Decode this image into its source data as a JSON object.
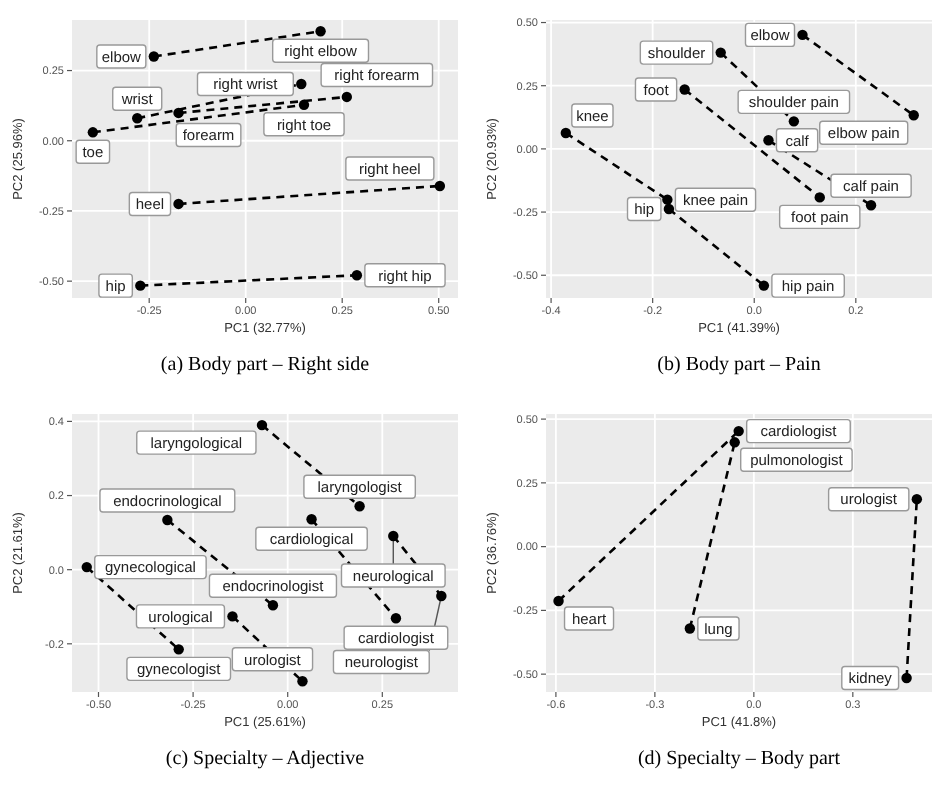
{
  "chart_data": [
    {
      "type": "line",
      "title": "(a) Body part – Right side",
      "xlabel": "PC1 (32.77%)",
      "ylabel": "PC2 (25.96%)",
      "xlim": [
        -0.45,
        0.55
      ],
      "ylim": [
        -0.56,
        0.43
      ],
      "xticks": [
        {
          "value": -0.25,
          "label": "-0.25"
        },
        {
          "value": 0,
          "label": "0.00"
        },
        {
          "value": 0.25,
          "label": "0.25"
        },
        {
          "value": 0.5,
          "label": "0.50"
        }
      ],
      "yticks": [
        {
          "value": -0.5,
          "label": "-0.50"
        },
        {
          "value": -0.25,
          "label": "-0.25"
        },
        {
          "value": 0,
          "label": "0.00"
        },
        {
          "value": 0.25,
          "label": "0.25"
        }
      ],
      "grid": true,
      "marker": "circle",
      "line_style": "dashed",
      "series": [
        {
          "color": "#000000",
          "x": [
            -0.238,
            0.194
          ],
          "values": [
            0.3,
            0.39
          ]
        },
        {
          "color": "#000000",
          "x": [
            -0.281,
            0.144
          ],
          "values": [
            0.08,
            0.202
          ]
        },
        {
          "color": "#000000",
          "x": [
            -0.174,
            0.262
          ],
          "values": [
            0.099,
            0.156
          ]
        },
        {
          "color": "#000000",
          "x": [
            -0.396,
            0.151
          ],
          "values": [
            0.03,
            0.128
          ]
        },
        {
          "color": "#000000",
          "x": [
            -0.174,
            0.503
          ],
          "values": [
            -0.225,
            -0.161
          ]
        },
        {
          "color": "#000000",
          "x": [
            -0.273,
            0.288
          ],
          "values": [
            -0.516,
            -0.479
          ]
        }
      ],
      "annotations": [
        {
          "text": "elbow",
          "x": -0.238,
          "y": 0.3
        },
        {
          "text": "right elbow",
          "x": 0.194,
          "y": 0.39
        },
        {
          "text": "wrist",
          "x": -0.281,
          "y": 0.08
        },
        {
          "text": "right wrist",
          "x": 0.144,
          "y": 0.202
        },
        {
          "text": "forearm",
          "x": -0.174,
          "y": 0.099
        },
        {
          "text": "right forearm",
          "x": 0.262,
          "y": 0.156
        },
        {
          "text": "toe",
          "x": -0.396,
          "y": 0.03
        },
        {
          "text": "right toe",
          "x": 0.151,
          "y": 0.128
        },
        {
          "text": "heel",
          "x": -0.174,
          "y": -0.225
        },
        {
          "text": "right heel",
          "x": 0.503,
          "y": -0.161
        },
        {
          "text": "hip",
          "x": -0.273,
          "y": -0.516
        },
        {
          "text": "right hip",
          "x": 0.288,
          "y": -0.479
        }
      ]
    },
    {
      "type": "line",
      "title": "(b) Body part – Pain",
      "xlabel": "PC1 (41.39%)",
      "ylabel": "PC2 (20.93%)",
      "xlim": [
        -0.41,
        0.35
      ],
      "ylim": [
        -0.59,
        0.51
      ],
      "xticks": [
        {
          "value": -0.4,
          "label": "-0.4"
        },
        {
          "value": -0.2,
          "label": "-0.2"
        },
        {
          "value": 0,
          "label": "0.0"
        },
        {
          "value": 0.2,
          "label": "0.2"
        }
      ],
      "yticks": [
        {
          "value": -0.5,
          "label": "-0.50"
        },
        {
          "value": -0.25,
          "label": "-0.25"
        },
        {
          "value": 0,
          "label": "0.00"
        },
        {
          "value": 0.25,
          "label": "0.25"
        },
        {
          "value": 0.5,
          "label": "0.50"
        }
      ],
      "grid": true,
      "marker": "circle",
      "line_style": "dashed",
      "series": [
        {
          "color": "#000000",
          "x": [
            0.095,
            0.314
          ],
          "values": [
            0.451,
            0.133
          ]
        },
        {
          "color": "#000000",
          "x": [
            -0.066,
            0.078
          ],
          "values": [
            0.381,
            0.109
          ]
        },
        {
          "color": "#000000",
          "x": [
            -0.137,
            0.129
          ],
          "values": [
            0.235,
            -0.192
          ]
        },
        {
          "color": "#000000",
          "x": [
            0.028,
            0.23
          ],
          "values": [
            0.034,
            -0.223
          ]
        },
        {
          "color": "#000000",
          "x": [
            -0.371,
            -0.171
          ],
          "values": [
            0.063,
            -0.201
          ]
        },
        {
          "color": "#000000",
          "x": [
            -0.168,
            0.019
          ],
          "values": [
            -0.238,
            -0.541
          ]
        }
      ],
      "annotations": [
        {
          "text": "elbow",
          "x": 0.095,
          "y": 0.451
        },
        {
          "text": "elbow pain",
          "x": 0.314,
          "y": 0.133
        },
        {
          "text": "shoulder",
          "x": -0.066,
          "y": 0.381
        },
        {
          "text": "shoulder pain",
          "x": 0.078,
          "y": 0.109
        },
        {
          "text": "foot",
          "x": -0.137,
          "y": 0.235
        },
        {
          "text": "foot pain",
          "x": 0.129,
          "y": -0.192
        },
        {
          "text": "calf",
          "x": 0.028,
          "y": 0.034
        },
        {
          "text": "calf pain",
          "x": 0.23,
          "y": -0.223
        },
        {
          "text": "knee",
          "x": -0.371,
          "y": 0.063
        },
        {
          "text": "knee pain",
          "x": -0.171,
          "y": -0.201
        },
        {
          "text": "hip",
          "x": -0.168,
          "y": -0.238
        },
        {
          "text": "hip pain",
          "x": 0.019,
          "y": -0.541
        }
      ]
    },
    {
      "type": "line",
      "title": "(c) Specialty – Adjective",
      "xlabel": "PC1 (25.61%)",
      "ylabel": "PC2 (21.61%)",
      "xlim": [
        -0.57,
        0.45
      ],
      "ylim": [
        -0.33,
        0.42
      ],
      "xticks": [
        {
          "value": -0.5,
          "label": "-0.50"
        },
        {
          "value": -0.25,
          "label": "-0.25"
        },
        {
          "value": 0,
          "label": "0.00"
        },
        {
          "value": 0.25,
          "label": "0.25"
        }
      ],
      "yticks": [
        {
          "value": -0.2,
          "label": "-0.2"
        },
        {
          "value": 0,
          "label": "0.0"
        },
        {
          "value": 0.2,
          "label": "0.2"
        },
        {
          "value": 0.4,
          "label": "0.4"
        }
      ],
      "grid": true,
      "marker": "circle",
      "line_style": "dashed",
      "series": [
        {
          "color": "#000000",
          "x": [
            -0.068,
            0.19
          ],
          "values": [
            0.39,
            0.171
          ]
        },
        {
          "color": "#000000",
          "x": [
            -0.318,
            -0.039
          ],
          "values": [
            0.134,
            -0.096
          ]
        },
        {
          "color": "#000000",
          "x": [
            0.063,
            0.286
          ],
          "values": [
            0.136,
            -0.131
          ]
        },
        {
          "color": "#000000",
          "x": [
            0.279,
            0.406
          ],
          "values": [
            0.091,
            -0.071
          ]
        },
        {
          "color": "#000000",
          "x": [
            -0.531,
            -0.288
          ],
          "values": [
            0.007,
            -0.215
          ]
        },
        {
          "color": "#000000",
          "x": [
            -0.146,
            0.039
          ],
          "values": [
            -0.126,
            -0.301
          ]
        }
      ],
      "annotations": [
        {
          "text": "laryngological",
          "x": -0.068,
          "y": 0.39
        },
        {
          "text": "laryngologist",
          "x": 0.19,
          "y": 0.171
        },
        {
          "text": "endocrinological",
          "x": -0.318,
          "y": 0.134
        },
        {
          "text": "endocrinologist",
          "x": -0.039,
          "y": -0.096
        },
        {
          "text": "cardiological",
          "x": 0.063,
          "y": 0.136
        },
        {
          "text": "cardiologist",
          "x": 0.286,
          "y": -0.131
        },
        {
          "text": "neurological",
          "x": 0.279,
          "y": 0.091
        },
        {
          "text": "neurologist",
          "x": 0.406,
          "y": -0.071
        },
        {
          "text": "gynecological",
          "x": -0.531,
          "y": 0.007
        },
        {
          "text": "gynecologist",
          "x": -0.288,
          "y": -0.215
        },
        {
          "text": "urological",
          "x": -0.146,
          "y": -0.126
        },
        {
          "text": "urologist",
          "x": 0.039,
          "y": -0.301
        }
      ]
    },
    {
      "type": "line",
      "title": "(d) Specialty – Body part",
      "xlabel": "PC1 (41.8%)",
      "ylabel": "PC2 (36.76%)",
      "xlim": [
        -0.63,
        0.54
      ],
      "ylim": [
        -0.57,
        0.52
      ],
      "xticks": [
        {
          "value": -0.6,
          "label": "-0.6"
        },
        {
          "value": -0.3,
          "label": "-0.3"
        },
        {
          "value": 0,
          "label": "0.0"
        },
        {
          "value": 0.3,
          "label": "0.3"
        }
      ],
      "yticks": [
        {
          "value": -0.5,
          "label": "-0.50"
        },
        {
          "value": -0.25,
          "label": "-0.25"
        },
        {
          "value": 0,
          "label": "0.00"
        },
        {
          "value": 0.25,
          "label": "0.25"
        },
        {
          "value": 0.5,
          "label": "0.50"
        }
      ],
      "grid": true,
      "marker": "circle",
      "line_style": "dashed",
      "series": [
        {
          "color": "#000000",
          "x": [
            -0.592,
            -0.046
          ],
          "values": [
            -0.213,
            0.453
          ]
        },
        {
          "color": "#000000",
          "x": [
            -0.194,
            -0.058
          ],
          "values": [
            -0.321,
            0.409
          ]
        },
        {
          "color": "#000000",
          "x": [
            0.463,
            0.494
          ],
          "values": [
            -0.515,
            0.186
          ]
        }
      ],
      "annotations": [
        {
          "text": "cardiologist",
          "x": -0.046,
          "y": 0.453
        },
        {
          "text": "pulmonologist",
          "x": -0.058,
          "y": 0.409
        },
        {
          "text": "heart",
          "x": -0.592,
          "y": -0.213
        },
        {
          "text": "lung",
          "x": -0.194,
          "y": -0.321
        },
        {
          "text": "urologist",
          "x": 0.494,
          "y": 0.186
        },
        {
          "text": "kidney",
          "x": 0.463,
          "y": -0.515
        }
      ]
    }
  ]
}
